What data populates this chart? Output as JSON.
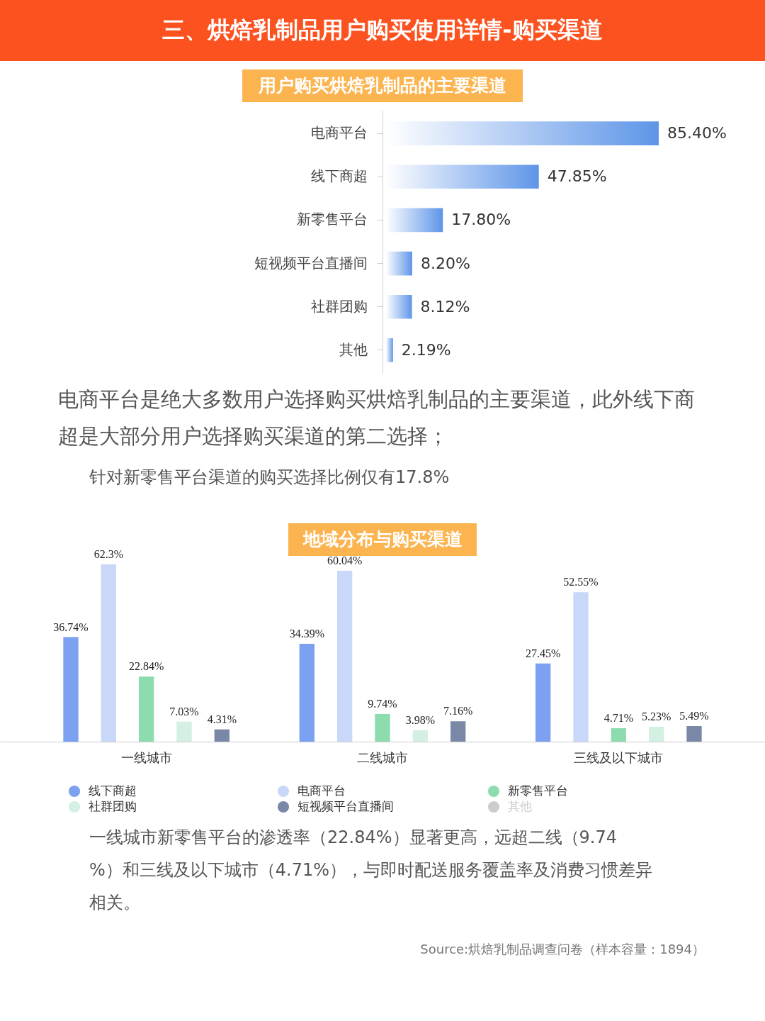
{
  "chart_data": [
    {
      "type": "other",
      "title": "三、烘焙乳制品用户购买使用详情-购买渠道"
    },
    {
      "type": "bar",
      "orientation": "horizontal",
      "title": "用户购买烘焙乳制品的主要渠道",
      "categories": [
        "电商平台",
        "线下商超",
        "新零售平台",
        "短视频平台直播间",
        "社群团购",
        "其他"
      ],
      "values": [
        85.4,
        47.85,
        17.8,
        8.2,
        8.12,
        2.19
      ],
      "value_labels": [
        "85.40%",
        "47.85%",
        "17.80%",
        "8.20%",
        "8.12%",
        "2.19%"
      ],
      "color": "#5e95e8",
      "annotations": [
        "电商平台是绝大多数用户选择购买烘焙乳制品的主要渠道，此外线下商超是大部分用户选择购买渠道的第二选择；",
        "针对新零售平台渠道的购买选择比例仅有17.8%"
      ]
    },
    {
      "type": "bar",
      "title": "地域分布与购买渠道",
      "categories": [
        "一线城市",
        "二线城市",
        "三线及以下城市"
      ],
      "legend": "bottom",
      "series": [
        {
          "name": "线下商超",
          "color": "#7ba1f0",
          "values": [
            36.74,
            34.39,
            27.45
          ],
          "value_labels": [
            "36.74%",
            "34.39%",
            "27.45%"
          ]
        },
        {
          "name": "电商平台",
          "color": "#c9d8f8",
          "values": [
            62.3,
            60.04,
            52.55
          ],
          "value_labels": [
            "62.3%",
            "60.04%",
            "52.55%"
          ]
        },
        {
          "name": "新零售平台",
          "color": "#8ddcb0",
          "values": [
            22.84,
            9.74,
            4.71
          ],
          "value_labels": [
            "22.84%",
            "9.74%",
            "4.71%"
          ]
        },
        {
          "name": "社群团购",
          "color": "#d3f0e2",
          "values": [
            7.03,
            3.98,
            5.23
          ],
          "value_labels": [
            "7.03%",
            "3.98%",
            "5.23%"
          ]
        },
        {
          "name": "短视频平台直播间",
          "color": "#7a88a8",
          "values": [
            4.31,
            7.16,
            5.49
          ],
          "value_labels": [
            "4.31%",
            "7.16%",
            "5.49%"
          ]
        },
        {
          "name": "其他",
          "color": "#cccccc",
          "values": [
            null,
            null,
            null
          ]
        }
      ],
      "annotations": [
        "一线城市新零售平台的渗透率（22.84%）显著更高，远超二线（9.74%）和三线及以下城市（4.71%），与即时配送服务覆盖率及消费习惯差异相关。",
        "Source:烘焙乳制品调查问卷（样本容量：1894）"
      ]
    }
  ]
}
